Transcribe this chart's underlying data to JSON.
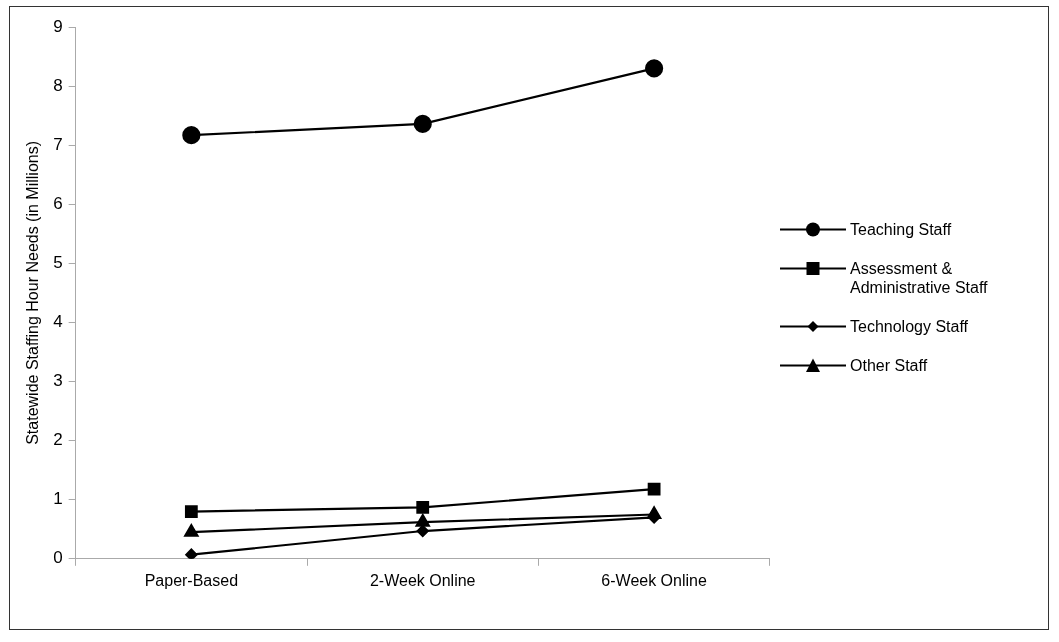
{
  "chart_data": {
    "type": "line",
    "ylabel": "Statewide Staffing Hour Needs (in Millions)",
    "categories": [
      "Paper-Based",
      "2-Week Online",
      "6-Week Online"
    ],
    "series": [
      {
        "name": "Teaching Staff",
        "color": "#000000",
        "marker": "circle",
        "values": [
          7.17,
          7.36,
          8.3
        ]
      },
      {
        "name": "Assessment & Administrative Staff",
        "color": "#000000",
        "marker": "square",
        "values": [
          0.8,
          0.87,
          1.18
        ]
      },
      {
        "name": "Technology Staff",
        "color": "#000000",
        "marker": "diamond",
        "values": [
          0.07,
          0.47,
          0.7
        ]
      },
      {
        "name": "Other Staff",
        "color": "#000000",
        "marker": "triangle",
        "values": [
          0.45,
          0.62,
          0.75
        ]
      }
    ],
    "ylim": [
      0,
      9
    ],
    "yticks": [
      0,
      1,
      2,
      3,
      4,
      5,
      6,
      7,
      8,
      9
    ],
    "grid": false,
    "legend": "right",
    "line_style": "solid"
  }
}
